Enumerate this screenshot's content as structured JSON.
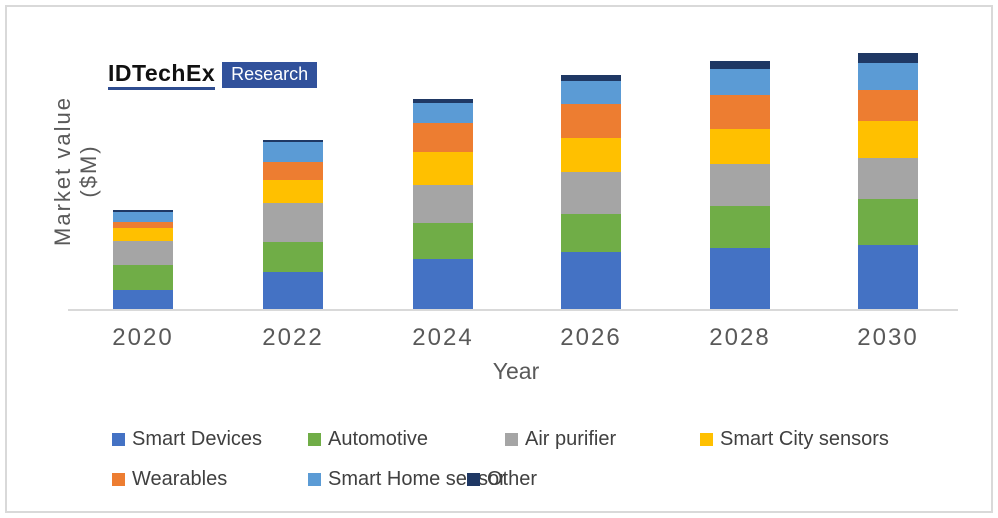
{
  "logo": {
    "brand": "IDTechEx",
    "sub": "Research",
    "accent_color": "#31519b"
  },
  "chart_data": {
    "type": "bar",
    "stacked": true,
    "xlabel": "Year",
    "ylabel": "Market value ($M)",
    "categories": [
      "2020",
      "2022",
      "2024",
      "2026",
      "2028",
      "2030"
    ],
    "series": [
      {
        "name": "Smart Devices",
        "color": "#4472C4",
        "values": [
          20,
          38,
          51,
          58,
          62,
          65
        ]
      },
      {
        "name": "Automotive",
        "color": "#70AD47",
        "values": [
          25,
          30,
          36,
          38,
          42,
          46
        ]
      },
      {
        "name": "Air purifier",
        "color": "#A5A5A5",
        "values": [
          24,
          39,
          38,
          42,
          42,
          41
        ]
      },
      {
        "name": "Smart City sensors",
        "color": "#FFC000",
        "values": [
          13,
          23,
          33,
          34,
          35,
          37
        ]
      },
      {
        "name": "Wearables",
        "color": "#ED7D31",
        "values": [
          6,
          18,
          29,
          34,
          34,
          31
        ]
      },
      {
        "name": "Smart Home sensor",
        "color": "#5B9BD5",
        "values": [
          10,
          20,
          20,
          23,
          26,
          27
        ]
      },
      {
        "name": "Other",
        "color": "#1F3864",
        "values": [
          2,
          2,
          4,
          6,
          8,
          10
        ]
      }
    ],
    "stack_totals": [
      100,
      170,
      211,
      235,
      249,
      257
    ],
    "ylim": [
      0,
      260
    ],
    "y_tick_labels_visible": false,
    "gridlines": false,
    "legend_position": "bottom",
    "axis_color": "#d9d9d9",
    "text_color": "#595959"
  }
}
